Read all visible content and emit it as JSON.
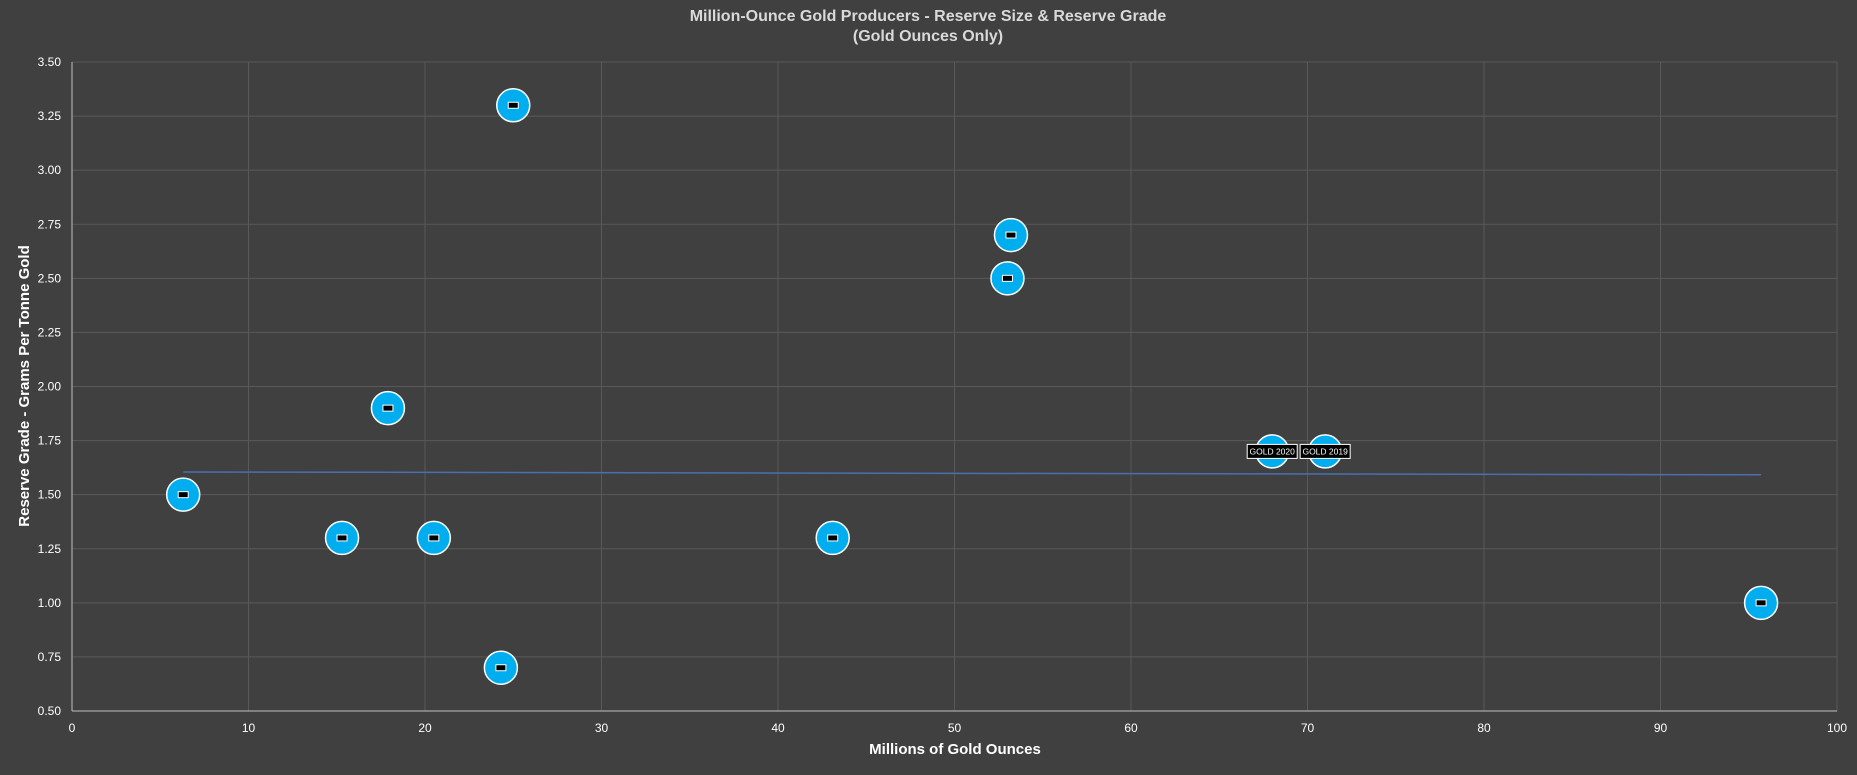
{
  "chart_data": {
    "type": "scatter",
    "title": "Million-Ounce Gold Producers - Reserve Size & Reserve Grade",
    "subtitle": "(Gold Ounces Only)",
    "xlabel": "Millions of Gold Ounces",
    "ylabel": "Reserve Grade - Grams Per Tonne Gold",
    "xlim": [
      0,
      100
    ],
    "ylim": [
      0.5,
      3.5
    ],
    "x_ticks": [
      "0",
      "10",
      "20",
      "30",
      "40",
      "50",
      "60",
      "70",
      "80",
      "90",
      "100"
    ],
    "y_ticks": [
      "0.50",
      "0.75",
      "1.00",
      "1.25",
      "1.50",
      "1.75",
      "2.00",
      "2.25",
      "2.50",
      "2.75",
      "3.00",
      "3.25",
      "3.50"
    ],
    "grid": true,
    "legend": "none",
    "point_color": "#00aeef",
    "trend_color": "#4a6fb0",
    "points": [
      {
        "x": 6.3,
        "y": 1.5,
        "label": ""
      },
      {
        "x": 15.3,
        "y": 1.3,
        "label": ""
      },
      {
        "x": 17.9,
        "y": 1.9,
        "label": ""
      },
      {
        "x": 20.5,
        "y": 1.3,
        "label": ""
      },
      {
        "x": 24.3,
        "y": 0.7,
        "label": ""
      },
      {
        "x": 25.0,
        "y": 3.3,
        "label": ""
      },
      {
        "x": 43.1,
        "y": 1.3,
        "label": ""
      },
      {
        "x": 53.0,
        "y": 2.5,
        "label": ""
      },
      {
        "x": 53.2,
        "y": 2.7,
        "label": ""
      },
      {
        "x": 68.0,
        "y": 1.7,
        "label": "GOLD 2020"
      },
      {
        "x": 71.0,
        "y": 1.7,
        "label": "GOLD 2019"
      },
      {
        "x": 95.7,
        "y": 1.0,
        "label": ""
      }
    ],
    "trendline": {
      "type": "linear",
      "points": [
        [
          6.3,
          1.605
        ],
        [
          95.7,
          1.592
        ]
      ]
    }
  }
}
